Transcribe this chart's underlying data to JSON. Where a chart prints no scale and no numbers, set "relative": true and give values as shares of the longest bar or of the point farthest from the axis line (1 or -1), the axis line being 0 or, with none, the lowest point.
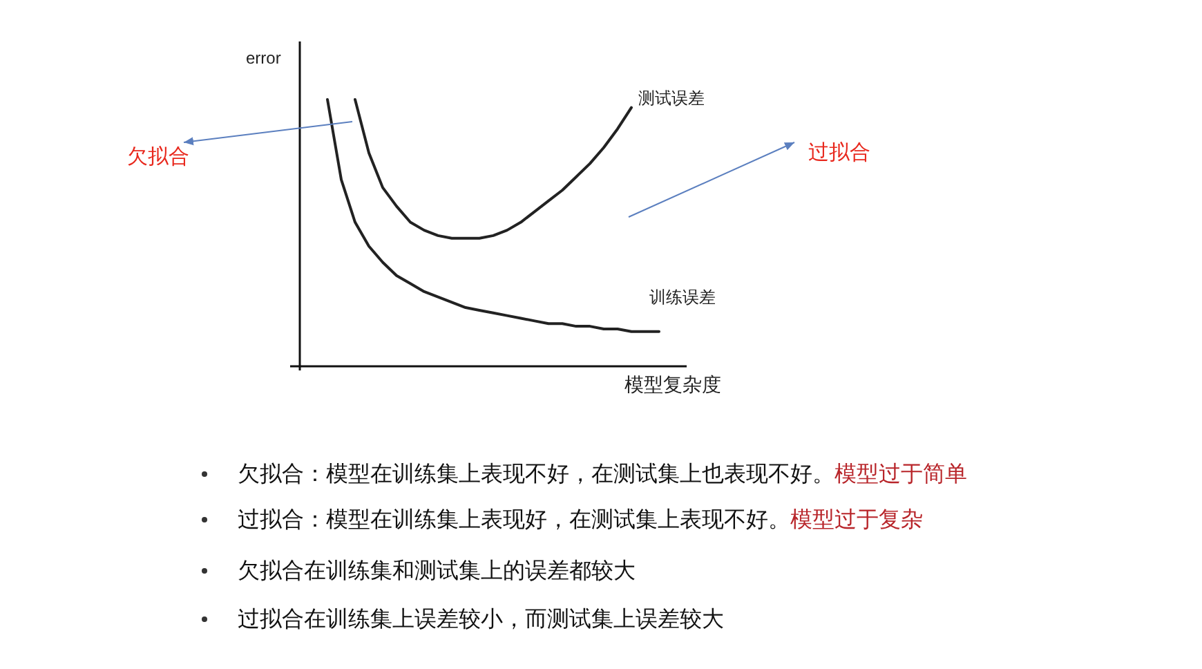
{
  "chart_data": {
    "type": "line",
    "relative": true,
    "xlabel": "模型复杂度",
    "ylabel": "error",
    "categories": [
      null,
      null,
      null,
      null,
      null,
      null,
      null,
      null,
      null,
      null,
      null,
      null,
      null,
      null,
      null,
      null,
      null,
      null,
      null,
      null,
      null,
      null,
      null,
      null,
      null,
      null,
      null,
      null,
      null
    ],
    "series": [
      {
        "name": "测试误差",
        "color": "#222222",
        "values": [
          null,
          null,
          null,
          null,
          1.0,
          0.8,
          0.67,
          0.6,
          0.54,
          0.51,
          0.49,
          0.48,
          0.48,
          0.48,
          0.49,
          0.51,
          0.54,
          0.58,
          0.62,
          0.66,
          0.71,
          0.76,
          0.82,
          0.89,
          0.97,
          null,
          null,
          null,
          null
        ]
      },
      {
        "name": "训练误差",
        "color": "#222222",
        "values": [
          null,
          null,
          1.0,
          0.7,
          0.54,
          0.45,
          0.39,
          0.34,
          0.31,
          0.28,
          0.26,
          0.24,
          0.22,
          0.21,
          0.2,
          0.19,
          0.18,
          0.17,
          0.16,
          0.16,
          0.15,
          0.15,
          0.14,
          0.14,
          0.13,
          0.13,
          0.13,
          null,
          null
        ]
      }
    ],
    "annotations": [
      "欠拟合",
      "过拟合",
      "欠拟合：模型在训练集上表现不好，在测试集上也表现不好。",
      "模型过于简单",
      "过拟合：模型在训练集上表现好，在测试集上表现不好。",
      "模型过于复杂",
      "欠拟合在训练集和测试集上的误差都较大",
      "过拟合在训练集上误差较小，而测试集上误差较大"
    ]
  }
}
